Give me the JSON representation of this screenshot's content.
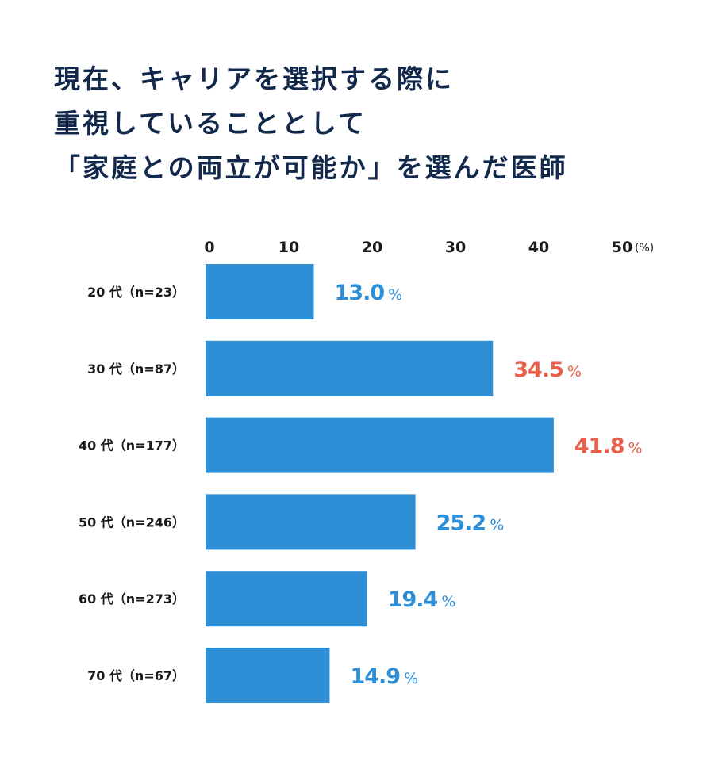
{
  "title_lines": [
    "現在、キャリアを選択する際に",
    "重視していることとして",
    "「家庭との両立が可能か」を選んだ医師"
  ],
  "colors": {
    "bar": "#2f8fd6",
    "label_default": "#2f8fd6",
    "label_highlight": "#e8604a",
    "title": "#13294b",
    "text": "#1a1a1a"
  },
  "chart_data": {
    "type": "bar",
    "orientation": "horizontal",
    "categories": [
      "20 代（n=23）",
      "30 代（n=87）",
      "40 代（n=177）",
      "50 代（n=246）",
      "60 代（n=273）",
      "70 代（n=67）"
    ],
    "values": [
      13.0,
      34.5,
      41.8,
      25.2,
      19.4,
      14.9
    ],
    "value_labels": [
      "13.0",
      "34.5",
      "41.8",
      "25.2",
      "19.4",
      "14.9"
    ],
    "value_unit": "%",
    "highlighted": [
      false,
      true,
      true,
      false,
      false,
      false
    ],
    "xlim": [
      0,
      50
    ],
    "xticks": [
      0,
      10,
      20,
      30,
      40,
      50
    ],
    "xtick_labels": [
      "0",
      "10",
      "20",
      "30",
      "40",
      "50"
    ],
    "axis_unit_label": "(%)",
    "axis_position": "top",
    "grid": false
  }
}
